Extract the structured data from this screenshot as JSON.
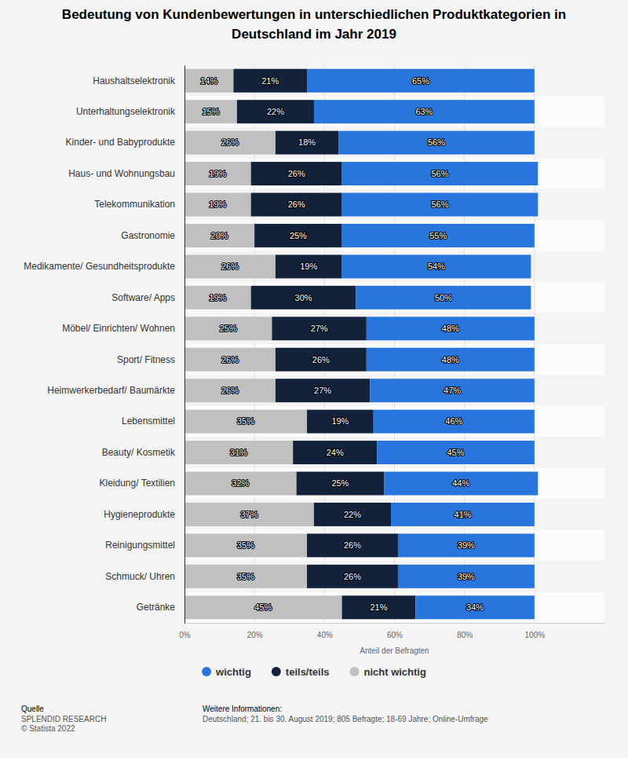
{
  "chart_data": {
    "type": "bar",
    "title": "Bedeutung von Kundenbewertungen in unterschiedlichen Produktkategorien in Deutschland im Jahr 2019",
    "xlabel": "Anteil der Befragten",
    "orientation": "horizontal",
    "stacked": true,
    "data_labels": true,
    "grid": true,
    "legend": "bottom",
    "categories": [
      "Haushaltselektronik",
      "Unterhaltungselektronik",
      "Kinder- und Babyprodukte",
      "Haus- und Wohnungsbau",
      "Telekommunikation",
      "Gastronomie",
      "Medikamente/ Gesundheitsprodukte",
      "Software/ Apps",
      "Möbel/ Einrichten/ Wohnen",
      "Sport/ Fitness",
      "Heimwerkerbedarf/ Baumärkte",
      "Lebensmittel",
      "Beauty/ Kosmetik",
      "Kleidung/ Textilien",
      "Hygieneprodukte",
      "Reinigungsmittel",
      "Schmuck/ Uhren",
      "Getränke"
    ],
    "series": [
      {
        "name": "nicht wichtig",
        "color": "#c0c0c0",
        "values": [
          14,
          15,
          26,
          19,
          19,
          20,
          26,
          19,
          25,
          26,
          26,
          35,
          31,
          32,
          37,
          35,
          35,
          45
        ],
        "value_labels": [
          "14%",
          "15%",
          "26%",
          "19%",
          "19%",
          "20%",
          "26%",
          "19%",
          "25%",
          "26%",
          "26%",
          "35%",
          "31%",
          "32%",
          "37%",
          "35%",
          "35%",
          "45%"
        ]
      },
      {
        "name": "teils/teils",
        "color": "#12223b",
        "values": [
          21,
          22,
          18,
          26,
          26,
          25,
          19,
          30,
          27,
          26,
          27,
          19,
          24,
          25,
          22,
          26,
          26,
          21
        ],
        "value_labels": [
          "21%",
          "22%",
          "18%",
          "26%",
          "26%",
          "25%",
          "19%",
          "30%",
          "27%",
          "26%",
          "27%",
          "19%",
          "24%",
          "25%",
          "22%",
          "26%",
          "26%",
          "21%"
        ]
      },
      {
        "name": "wichtig",
        "color": "#2876dd",
        "values": [
          65,
          63,
          56,
          56,
          56,
          55,
          54,
          50,
          48,
          48,
          47,
          46,
          45,
          44,
          41,
          39,
          39,
          34
        ],
        "value_labels": [
          "65%",
          "63%",
          "56%",
          "56%",
          "56%",
          "55%",
          "54%",
          "50%",
          "48%",
          "48%",
          "47%",
          "46%",
          "45%",
          "44%",
          "41%",
          "39%",
          "39%",
          "34%"
        ]
      }
    ],
    "xlim": [
      0,
      120
    ],
    "xticks": [
      {
        "value": 0,
        "label": "0%"
      },
      {
        "value": 20,
        "label": "20%"
      },
      {
        "value": 40,
        "label": "40%"
      },
      {
        "value": 60,
        "label": "60%"
      },
      {
        "value": 80,
        "label": "80%"
      },
      {
        "value": 100,
        "label": "100%"
      }
    ],
    "source_title": "Quelle",
    "source": "SPLENDID RESEARCH",
    "copyright": "© Statista 2022",
    "info_title": "Weitere Informationen:",
    "info": "Deutschland; 21. bis 30. August 2019; 805 Befragte; 18-69 Jahre; Online-Umfrage"
  }
}
